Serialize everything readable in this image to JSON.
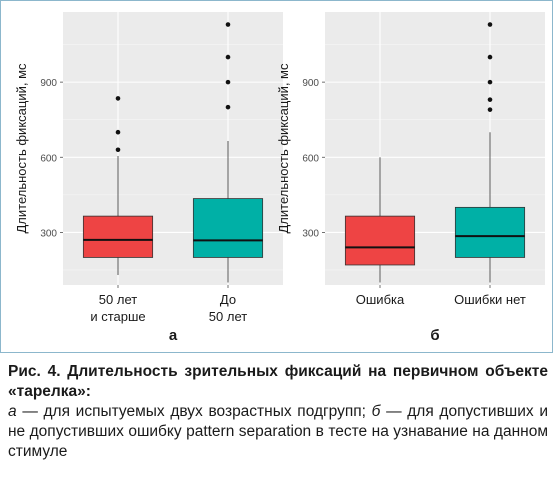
{
  "chart_data": [
    {
      "type": "boxplot",
      "panel_label": "а",
      "ylabel": "Длительность фиксаций, мс",
      "ylim": [
        90,
        1180
      ],
      "yticks": [
        300,
        600,
        900
      ],
      "grid": true,
      "categories": [
        "50 лет\nи старше",
        "До\n50 лет"
      ],
      "boxes": [
        {
          "category": "50 лет\nи старше",
          "color": "#ee4444",
          "whisker_low": 130,
          "q1": 200,
          "median": 270,
          "q3": 365,
          "whisker_high": 605,
          "outliers": [
            630,
            700,
            835
          ]
        },
        {
          "category": "До\n50 лет",
          "color": "#00b0a6",
          "whisker_low": 100,
          "q1": 200,
          "median": 268,
          "q3": 435,
          "whisker_high": 665,
          "outliers": [
            800,
            900,
            1000,
            1130
          ]
        }
      ]
    },
    {
      "type": "boxplot",
      "panel_label": "б",
      "ylabel": "Длительность фиксаций, мс",
      "ylim": [
        90,
        1180
      ],
      "yticks": [
        300,
        600,
        900
      ],
      "grid": true,
      "categories": [
        "Ошибка",
        "Ошибки нет"
      ],
      "boxes": [
        {
          "category": "Ошибка",
          "color": "#ee4444",
          "whisker_low": 100,
          "q1": 170,
          "median": 240,
          "q3": 365,
          "whisker_high": 600,
          "outliers": []
        },
        {
          "category": "Ошибки нет",
          "color": "#00b0a6",
          "whisker_low": 100,
          "q1": 200,
          "median": 285,
          "q3": 400,
          "whisker_high": 700,
          "outliers": [
            790,
            830,
            900,
            1000,
            1130
          ]
        }
      ]
    }
  ],
  "caption": {
    "title": "Рис. 4. Длительность зрительных фиксаций на первичном объекте «тарелка»:",
    "label_a": "а",
    "text_a": " — для испытуемых двух возрастных подгрупп; ",
    "label_b": "б",
    "text_b": " — для допустивших и не допустивших ошибку pattern separation в тесте на узнавание на данном стимуле"
  },
  "colors": {
    "panel_bg": "#ebebeb",
    "grid_major": "#ffffff",
    "border": "#8cb7cc",
    "red": "#ee4444",
    "teal": "#00b0a6"
  }
}
